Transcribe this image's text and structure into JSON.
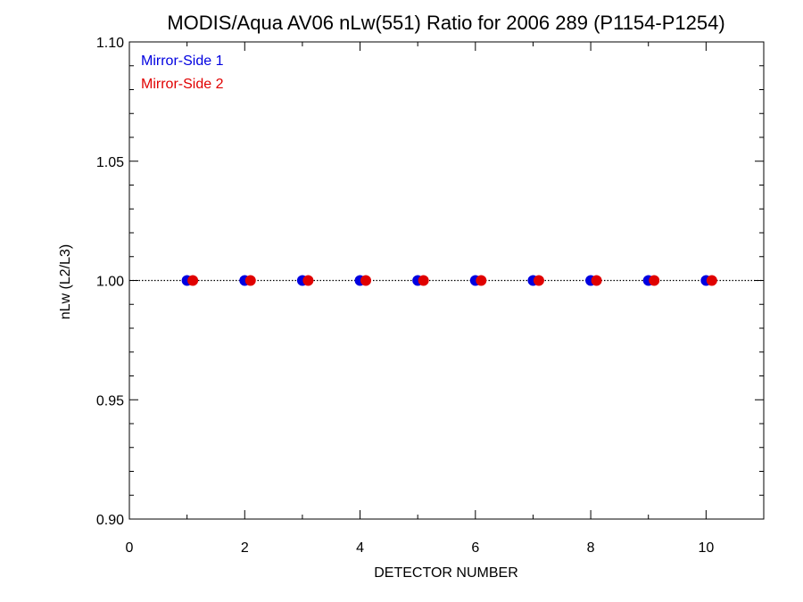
{
  "chart_data": {
    "type": "scatter",
    "title": "MODIS/Aqua AV06 nLw(551) Ratio for 2006 289 (P1154-P1254)",
    "xlabel": "DETECTOR NUMBER",
    "ylabel": "nLw (L2/L3)",
    "xlim": [
      0,
      11
    ],
    "ylim": [
      0.9,
      1.1
    ],
    "x_ticks": [
      0,
      2,
      4,
      6,
      8,
      10
    ],
    "x_tick_labels": [
      "0",
      "2",
      "4",
      "6",
      "8",
      "10"
    ],
    "y_ticks": [
      0.9,
      0.95,
      1.0,
      1.05,
      1.1
    ],
    "y_tick_labels": [
      "0.90",
      "0.95",
      "1.00",
      "1.05",
      "1.10"
    ],
    "reference_line": {
      "y": 1.0,
      "style": "dotted"
    },
    "legend_position": "top-left",
    "grid": false,
    "series": [
      {
        "name": "Mirror-Side 1",
        "color": "#0000e0",
        "x": [
          1,
          2,
          3,
          4,
          5,
          6,
          7,
          8,
          9,
          10
        ],
        "y": [
          1.0,
          1.0,
          1.0,
          1.0,
          1.0,
          1.0,
          1.0,
          1.0,
          1.0,
          1.0
        ]
      },
      {
        "name": "Mirror-Side 2",
        "color": "#e00000",
        "x": [
          1.1,
          2.1,
          3.1,
          4.1,
          5.1,
          6.1,
          7.1,
          8.1,
          9.1,
          10.1
        ],
        "y": [
          1.0,
          1.0,
          1.0,
          1.0,
          1.0,
          1.0,
          1.0,
          1.0,
          1.0,
          1.0
        ]
      }
    ]
  }
}
